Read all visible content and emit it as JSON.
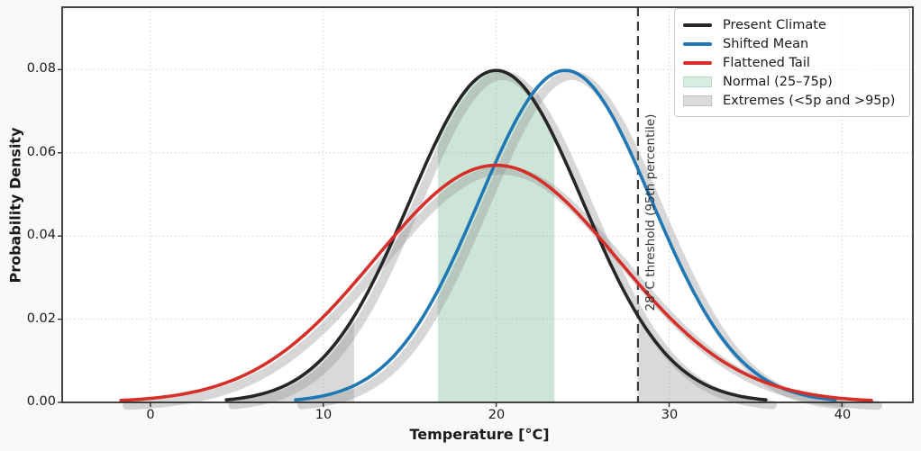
{
  "figure": {
    "background": "#f7f9fa",
    "plot_background": "#ffffff",
    "spine_color": "#2f2f2f"
  },
  "chart_data": {
    "type": "line",
    "title": "",
    "xlabel": "Temperature [°C]",
    "ylabel": "Probability Density",
    "xlim": [
      -5.1,
      44.1
    ],
    "ylim": [
      0,
      0.095
    ],
    "x_ticks": {
      "values": [
        0,
        10,
        20,
        30,
        40
      ],
      "labels": [
        "0",
        "10",
        "20",
        "30",
        "40"
      ]
    },
    "y_ticks": {
      "values": [
        0,
        0.02,
        0.04,
        0.06,
        0.08
      ],
      "labels": [
        "0.00",
        "0.02",
        "0.04",
        "0.06",
        "0.08"
      ]
    },
    "grid": {
      "style": "dotted",
      "color": "#cfcfcf"
    },
    "series": [
      {
        "name": "Present Climate",
        "color": "#262626",
        "distribution": "gaussian",
        "mean": 20,
        "sigma": 5,
        "peak_density": 0.0798,
        "x_range": [
          4.4,
          35.6
        ]
      },
      {
        "name": "Shifted Mean",
        "color": "#1f77b4",
        "distribution": "gaussian",
        "mean": 24,
        "sigma": 5,
        "peak_density": 0.0798,
        "x_range": [
          8.4,
          39.6
        ]
      },
      {
        "name": "Flattened Tail",
        "color": "#d62f2a",
        "distribution": "gaussian",
        "mean": 20,
        "sigma": 7,
        "peak_density": 0.057,
        "x_range": [
          -1.7,
          41.7
        ]
      }
    ],
    "regions": [
      {
        "name": "Normal (25–75p)",
        "under_series": 0,
        "color": "rgba(121,186,146,0.38)",
        "parts": [
          {
            "from": 16.63,
            "to": 23.37
          }
        ]
      },
      {
        "name": "Extremes (<5p and >95p)",
        "under_series": 0,
        "color": "rgba(130,130,130,0.30)",
        "parts": [
          {
            "from": 4.4,
            "to": 11.78
          },
          {
            "from": 28.2,
            "to": 35.6
          }
        ]
      }
    ],
    "threshold": {
      "value": 28.2,
      "label": "28°C threshold (95th percentile)",
      "line_color": "#3c3c3c",
      "style": "dashed"
    },
    "legend": {
      "items": [
        {
          "label": "Present Climate",
          "swatch": "line",
          "color": "#262626"
        },
        {
          "label": "Shifted Mean",
          "swatch": "line",
          "color": "#1f77b4"
        },
        {
          "label": "Flattened Tail",
          "swatch": "line",
          "color": "#d62f2a"
        },
        {
          "label": "Normal (25–75p)",
          "swatch": "patch",
          "color": "#d6ede0",
          "border": "#b5d9c4"
        },
        {
          "label": "Extremes (<5p and >95p)",
          "swatch": "patch",
          "color": "#dcdcdc",
          "border": "#c3c3c3"
        }
      ]
    }
  }
}
